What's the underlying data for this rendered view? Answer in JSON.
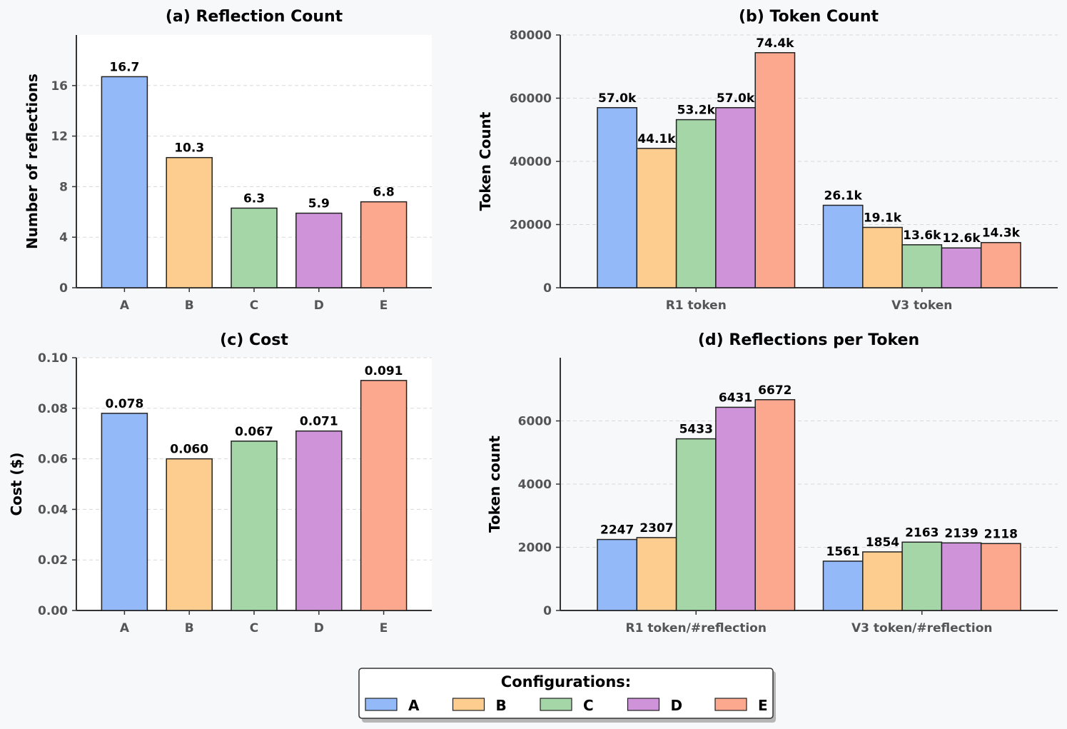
{
  "legend": {
    "title": "Configurations:",
    "items": [
      "A",
      "B",
      "C",
      "D",
      "E"
    ]
  },
  "colors": {
    "A": "#93b9f9",
    "B": "#fdcd8f",
    "C": "#a5d6a8",
    "D": "#ce93d8",
    "E": "#fca88f"
  },
  "chart_data": [
    {
      "id": "a",
      "type": "bar",
      "title": "(a) Reflection Count",
      "ylabel": "Number of reflections",
      "xlabel": "",
      "categories": [
        "A",
        "B",
        "C",
        "D",
        "E"
      ],
      "values": [
        16.7,
        10.3,
        6.3,
        5.9,
        6.8
      ],
      "labels": [
        "16.7",
        "10.3",
        "6.3",
        "5.9",
        "6.8"
      ],
      "ylim": [
        0,
        20
      ],
      "yticks": [
        0,
        4,
        8,
        12,
        16
      ],
      "ytick_labels": [
        "0",
        "4",
        "8",
        "12",
        "16"
      ],
      "grid": true
    },
    {
      "id": "b",
      "type": "bar",
      "title": "(b) Token Count",
      "ylabel": "Token Count",
      "xlabel": "",
      "categories": [
        "R1 token",
        "V3 token"
      ],
      "series": [
        {
          "name": "A",
          "values": [
            57000,
            26100
          ],
          "labels": [
            "57.0k",
            "26.1k"
          ]
        },
        {
          "name": "B",
          "values": [
            44100,
            19100
          ],
          "labels": [
            "44.1k",
            "19.1k"
          ]
        },
        {
          "name": "C",
          "values": [
            53200,
            13600
          ],
          "labels": [
            "53.2k",
            "13.6k"
          ]
        },
        {
          "name": "D",
          "values": [
            57000,
            12600
          ],
          "labels": [
            "57.0k",
            "12.6k"
          ]
        },
        {
          "name": "E",
          "values": [
            74400,
            14300
          ],
          "labels": [
            "74.4k",
            "14.3k"
          ]
        }
      ],
      "ylim": [
        0,
        80000
      ],
      "yticks": [
        0,
        20000,
        40000,
        60000,
        80000
      ],
      "ytick_labels": [
        "0",
        "20000",
        "40000",
        "60000",
        "80000"
      ],
      "grid": true
    },
    {
      "id": "c",
      "type": "bar",
      "title": "(c) Cost",
      "ylabel": "Cost ($)",
      "xlabel": "",
      "categories": [
        "A",
        "B",
        "C",
        "D",
        "E"
      ],
      "values": [
        0.078,
        0.06,
        0.067,
        0.071,
        0.091
      ],
      "labels": [
        "0.078",
        "0.060",
        "0.067",
        "0.071",
        "0.091"
      ],
      "ylim": [
        0,
        0.1
      ],
      "yticks": [
        0,
        0.02,
        0.04,
        0.06,
        0.08,
        0.1
      ],
      "ytick_labels": [
        "0.00",
        "0.02",
        "0.04",
        "0.06",
        "0.08",
        "0.10"
      ],
      "grid": true
    },
    {
      "id": "d",
      "type": "bar",
      "title": "(d) Reflections per Token",
      "ylabel": "Token count",
      "xlabel": "",
      "categories": [
        "R1 token/#reflection",
        "V3 token/#reflection"
      ],
      "series": [
        {
          "name": "A",
          "values": [
            2247,
            1561
          ],
          "labels": [
            "2247",
            "1561"
          ]
        },
        {
          "name": "B",
          "values": [
            2307,
            1854
          ],
          "labels": [
            "2307",
            "1854"
          ]
        },
        {
          "name": "C",
          "values": [
            5433,
            2163
          ],
          "labels": [
            "5433",
            "2163"
          ]
        },
        {
          "name": "D",
          "values": [
            6431,
            2139
          ],
          "labels": [
            "6431",
            "2139"
          ]
        },
        {
          "name": "E",
          "values": [
            6672,
            2118
          ],
          "labels": [
            "6672",
            "2118"
          ]
        }
      ],
      "ylim": [
        0,
        8000
      ],
      "yticks": [
        0,
        2000,
        4000,
        6000
      ],
      "ytick_labels": [
        "0",
        "2000",
        "4000",
        "6000"
      ],
      "grid": true
    }
  ]
}
